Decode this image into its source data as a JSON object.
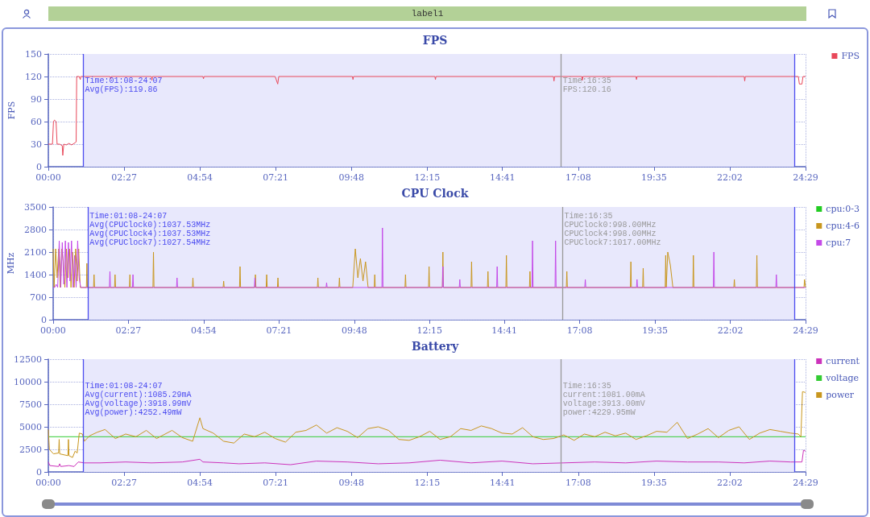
{
  "chart_data": [
    {
      "type": "line",
      "title": "FPS",
      "ylabel": "FPS",
      "annotations": [
        "label1",
        "Time:01:08-24:07\nAvg(FPS):119.86",
        "Time:16:35\nFPS:120.16"
      ],
      "xlim": [
        0,
        1469
      ],
      "xticks": [
        {
          "value": 0,
          "label": "00:00"
        },
        {
          "value": 147,
          "label": "02:27"
        },
        {
          "value": 294,
          "label": "04:54"
        },
        {
          "value": 441,
          "label": "07:21"
        },
        {
          "value": 588,
          "label": "09:48"
        },
        {
          "value": 735,
          "label": "12:15"
        },
        {
          "value": 881,
          "label": "14:41"
        },
        {
          "value": 1028,
          "label": "17:08"
        },
        {
          "value": 1175,
          "label": "19:35"
        },
        {
          "value": 1322,
          "label": "22:02"
        },
        {
          "value": 1469,
          "label": "24:29"
        }
      ],
      "ylim": [
        0,
        150
      ],
      "yticks": [
        0,
        30,
        60,
        90,
        120,
        150
      ],
      "grid": true,
      "legend": "right",
      "marker": "none",
      "line_style": "solid",
      "bands": [
        {
          "axis": "x",
          "from": 68,
          "to": 1447,
          "color": "#e8e8fc"
        }
      ],
      "ref_lines": [
        {
          "axis": "x",
          "value": 68,
          "color": "#4c4cf0"
        },
        {
          "axis": "x",
          "value": 1447,
          "color": "#4c4cf0"
        },
        {
          "axis": "x",
          "value": 995,
          "color": "#999999"
        }
      ],
      "series": [
        {
          "name": "FPS",
          "color": "#e8485a",
          "x": [
            0,
            8,
            10,
            12,
            15,
            17,
            22,
            27,
            28,
            30,
            35,
            40,
            45,
            50,
            54,
            55,
            60,
            62,
            63,
            120,
            121,
            122,
            200,
            201,
            202,
            300,
            301,
            302,
            440,
            445,
            447,
            590,
            591,
            592,
            700,
            750,
            751,
            752,
            900,
            980,
            981,
            982,
            1035,
            1036,
            1037,
            1100,
            1140,
            1141,
            1142,
            1300,
            1350,
            1351,
            1352,
            1440,
            1455,
            1457,
            1462,
            1464,
            1469
          ],
          "values": [
            30,
            30,
            60,
            62,
            60,
            30,
            30,
            28,
            15,
            30,
            29,
            31,
            29,
            31,
            33,
            120,
            120,
            116,
            120,
            120,
            117,
            120,
            120,
            115,
            120,
            120,
            117,
            120,
            120,
            110,
            120,
            120,
            116,
            120,
            120,
            120,
            116,
            120,
            120,
            120,
            114,
            120,
            120,
            115,
            120,
            120,
            120,
            116,
            120,
            120,
            120,
            114,
            120,
            120,
            120,
            110,
            110,
            120,
            120
          ]
        }
      ]
    },
    {
      "type": "line",
      "title": "CPU Clock",
      "ylabel": "MHz",
      "annotations": [
        "Time:01:08-24:07\nAvg(CPUClock0):1037.53MHz\nAvg(CPUClock4):1037.53MHz\nAvg(CPUClock7):1027.54MHz",
        "Time:16:35\nCPUClock0:998.00MHz\nCPUClock4:998.00MHz\nCPUClock7:1017.00MHz"
      ],
      "xlim": [
        0,
        1469
      ],
      "xticks": [
        {
          "value": 0,
          "label": "00:00"
        },
        {
          "value": 147,
          "label": "02:27"
        },
        {
          "value": 294,
          "label": "04:54"
        },
        {
          "value": 441,
          "label": "07:21"
        },
        {
          "value": 588,
          "label": "09:48"
        },
        {
          "value": 735,
          "label": "12:15"
        },
        {
          "value": 881,
          "label": "14:41"
        },
        {
          "value": 1028,
          "label": "17:08"
        },
        {
          "value": 1175,
          "label": "19:35"
        },
        {
          "value": 1322,
          "label": "22:02"
        },
        {
          "value": 1469,
          "label": "24:29"
        }
      ],
      "ylim": [
        0,
        3500
      ],
      "yticks": [
        0,
        700,
        1400,
        2100,
        2800,
        3500
      ],
      "grid": true,
      "legend": "right",
      "marker": "none",
      "line_style": "solid",
      "bands": [
        {
          "axis": "x",
          "from": 68,
          "to": 1447,
          "color": "#e8e8fc"
        }
      ],
      "ref_lines": [
        {
          "axis": "x",
          "value": 68,
          "color": "#4c4cf0"
        },
        {
          "axis": "x",
          "value": 1447,
          "color": "#4c4cf0"
        },
        {
          "axis": "x",
          "value": 995,
          "color": "#999999"
        }
      ],
      "series": [
        {
          "name": "cpu:0-3",
          "color": "#22cc22"
        },
        {
          "name": "cpu:4-6",
          "color": "#c8961e",
          "x": [
            0,
            2,
            5,
            8,
            11,
            14,
            17,
            20,
            23,
            26,
            29,
            32,
            35,
            38,
            41,
            44,
            47,
            50,
            53,
            56,
            65,
            66,
            67,
            79,
            80,
            81,
            120,
            121,
            122,
            149,
            150,
            151,
            195,
            196,
            197,
            272,
            273,
            274,
            332,
            333,
            334,
            364,
            365,
            366,
            394,
            395,
            396,
            416,
            417,
            418,
            438,
            439,
            440,
            516,
            517,
            518,
            558,
            559,
            560,
            585,
            590,
            595,
            600,
            605,
            610,
            615,
            620,
            627,
            628,
            629,
            687,
            688,
            689,
            733,
            734,
            735,
            760,
            761,
            762,
            816,
            817,
            818,
            848,
            849,
            850,
            884,
            885,
            886,
            930,
            931,
            932,
            1002,
            1003,
            1004,
            1127,
            1128,
            1129,
            1151,
            1152,
            1153,
            1195,
            1196,
            1197,
            1200,
            1205,
            1210,
            1249,
            1250,
            1251,
            1329,
            1330,
            1331,
            1373,
            1374,
            1375,
            1466,
            1467,
            1469
          ],
          "values": [
            2200,
            1000,
            2200,
            1300,
            2200,
            1000,
            2200,
            1800,
            1000,
            2200,
            1300,
            2200,
            1000,
            2100,
            1000,
            2200,
            1200,
            2200,
            1000,
            1000,
            1000,
            1750,
            1000,
            1000,
            1400,
            1000,
            1000,
            1400,
            1000,
            1000,
            1400,
            1000,
            1000,
            2100,
            1000,
            1000,
            1300,
            1000,
            1000,
            1200,
            1000,
            1000,
            1650,
            1000,
            1000,
            1400,
            1000,
            1000,
            1400,
            1000,
            1000,
            1300,
            1000,
            1000,
            1300,
            1000,
            1000,
            1300,
            1000,
            1000,
            2200,
            1300,
            1900,
            1200,
            1800,
            1000,
            1000,
            1000,
            1400,
            1000,
            1000,
            1400,
            1000,
            1000,
            1650,
            1000,
            1000,
            2100,
            1000,
            1000,
            1800,
            1000,
            1000,
            1500,
            1000,
            1000,
            2000,
            1000,
            1000,
            1500,
            1000,
            1000,
            1500,
            1000,
            1000,
            1800,
            1000,
            1000,
            1600,
            1000,
            1000,
            2000,
            1000,
            2100,
            1700,
            1000,
            1000,
            2000,
            1000,
            1000,
            1250,
            1000,
            1000,
            2000,
            1000,
            1000,
            1250,
            1000
          ]
        },
        {
          "name": "cpu:7",
          "color": "#c44ae8",
          "x": [
            0,
            3,
            6,
            9,
            12,
            15,
            18,
            21,
            24,
            27,
            30,
            33,
            36,
            39,
            42,
            45,
            48,
            51,
            54,
            57,
            110,
            111,
            112,
            155,
            156,
            157,
            241,
            242,
            243,
            393,
            394,
            395,
            533,
            534,
            535,
            642,
            643,
            644,
            760,
            761,
            762,
            793,
            794,
            795,
            866,
            867,
            868,
            935,
            936,
            937,
            980,
            981,
            982,
            1038,
            1039,
            1040,
            1139,
            1140,
            1141,
            1289,
            1290,
            1291,
            1411,
            1412,
            1413,
            1469
          ],
          "values": [
            1000,
            1000,
            1100,
            1000,
            2450,
            1000,
            2400,
            1100,
            2450,
            1000,
            2400,
            1200,
            2450,
            1000,
            2000,
            1000,
            2450,
            1300,
            1000,
            1000,
            1000,
            1500,
            1000,
            1000,
            1400,
            1000,
            1000,
            1300,
            1000,
            1000,
            1300,
            1000,
            1000,
            1150,
            1000,
            1000,
            2850,
            1000,
            1000,
            1650,
            1000,
            1000,
            1250,
            1000,
            1000,
            1650,
            1000,
            1000,
            2450,
            1000,
            1000,
            2450,
            1000,
            1000,
            1250,
            1000,
            1000,
            1250,
            1000,
            1000,
            2100,
            1000,
            1000,
            1400,
            1000,
            1000
          ]
        }
      ]
    },
    {
      "type": "line",
      "title": "Battery",
      "annotations": [
        "Time:01:08-24:07\nAvg(current):1085.29mA\nAvg(voltage):3918.99mV\nAvg(power):4252.49mW",
        "Time:16:35\ncurrent:1081.00mA\nvoltage:3913.00mV\npower:4229.95mW"
      ],
      "xlim": [
        0,
        1469
      ],
      "xticks": [
        {
          "value": 0,
          "label": "00:00"
        },
        {
          "value": 147,
          "label": "02:27"
        },
        {
          "value": 294,
          "label": "04:54"
        },
        {
          "value": 441,
          "label": "07:21"
        },
        {
          "value": 588,
          "label": "09:48"
        },
        {
          "value": 735,
          "label": "12:15"
        },
        {
          "value": 881,
          "label": "14:41"
        },
        {
          "value": 1028,
          "label": "17:08"
        },
        {
          "value": 1175,
          "label": "19:35"
        },
        {
          "value": 1322,
          "label": "22:02"
        },
        {
          "value": 1469,
          "label": "24:29"
        }
      ],
      "ylim": [
        0,
        12500
      ],
      "yticks": [
        0,
        2500,
        5000,
        7500,
        10000,
        12500
      ],
      "grid": true,
      "legend": "right",
      "marker": "none",
      "line_style": "solid",
      "bands": [
        {
          "axis": "x",
          "from": 68,
          "to": 1447,
          "color": "#e8e8fc"
        }
      ],
      "ref_lines": [
        {
          "axis": "x",
          "value": 68,
          "color": "#4c4cf0"
        },
        {
          "axis": "x",
          "value": 1447,
          "color": "#4c4cf0"
        },
        {
          "axis": "x",
          "value": 995,
          "color": "#999999"
        }
      ],
      "series": [
        {
          "name": "current",
          "color": "#cc33bb",
          "x": [
            0,
            3,
            20,
            22,
            24,
            40,
            50,
            58,
            70,
            100,
            150,
            200,
            260,
            294,
            300,
            340,
            370,
            420,
            470,
            520,
            580,
            640,
            700,
            760,
            820,
            880,
            940,
            1000,
            1060,
            1120,
            1180,
            1240,
            1300,
            1350,
            1400,
            1440,
            1462,
            1465,
            1469
          ],
          "values": [
            1100,
            700,
            600,
            900,
            600,
            700,
            600,
            1100,
            1000,
            1000,
            1100,
            1000,
            1100,
            1400,
            1100,
            1000,
            900,
            1000,
            800,
            1200,
            1100,
            900,
            1000,
            1300,
            1000,
            1200,
            900,
            1000,
            1100,
            1000,
            1200,
            1100,
            1100,
            1000,
            1200,
            1100,
            1100,
            2400,
            2300
          ]
        },
        {
          "name": "voltage",
          "color": "#33cc33",
          "x": [
            0,
            1469
          ],
          "values": [
            3900,
            3900
          ]
        },
        {
          "name": "power",
          "color": "#c8961e",
          "x": [
            0,
            2,
            10,
            20,
            21,
            22,
            38,
            39,
            40,
            47,
            52,
            56,
            60,
            66,
            70,
            80,
            95,
            110,
            130,
            150,
            170,
            190,
            210,
            240,
            260,
            280,
            294,
            300,
            320,
            340,
            360,
            380,
            400,
            420,
            440,
            460,
            480,
            500,
            520,
            540,
            560,
            580,
            600,
            620,
            640,
            660,
            680,
            700,
            720,
            740,
            760,
            780,
            800,
            820,
            840,
            860,
            880,
            900,
            920,
            940,
            960,
            980,
            1000,
            1020,
            1040,
            1060,
            1080,
            1100,
            1120,
            1140,
            1160,
            1180,
            1200,
            1220,
            1240,
            1260,
            1280,
            1300,
            1320,
            1340,
            1360,
            1380,
            1400,
            1420,
            1440,
            1455,
            1460,
            1463,
            1469
          ],
          "values": [
            4700,
            2500,
            2000,
            2100,
            3600,
            2000,
            1800,
            3600,
            1800,
            1600,
            2300,
            2100,
            4300,
            4200,
            3400,
            4000,
            4400,
            4700,
            3700,
            4200,
            3900,
            4600,
            3700,
            4600,
            3800,
            3400,
            6000,
            4800,
            4300,
            3400,
            3200,
            4200,
            3900,
            4400,
            3700,
            3300,
            4400,
            4600,
            5200,
            4300,
            4900,
            4500,
            3800,
            4800,
            5000,
            4600,
            3600,
            3500,
            3900,
            4500,
            3600,
            3900,
            4800,
            4600,
            5100,
            4800,
            4300,
            4200,
            4900,
            3900,
            3600,
            3700,
            4100,
            3500,
            4200,
            3900,
            4400,
            4000,
            4300,
            3600,
            4000,
            4500,
            4400,
            5500,
            3700,
            4200,
            4800,
            3800,
            4600,
            5000,
            3600,
            4300,
            4700,
            4500,
            4300,
            4200,
            3900,
            8900,
            8800
          ]
        }
      ]
    }
  ]
}
